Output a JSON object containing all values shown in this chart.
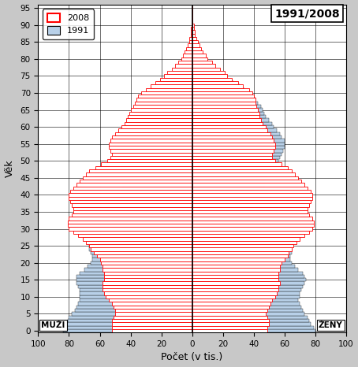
{
  "title": "1991/2008",
  "xlabel": "Počet (v tis.)",
  "ylabel": "Věk",
  "label_2008": "2008",
  "label_1991": "1991",
  "label_muzi": "MUŽI",
  "label_zeny": "ŽENY",
  "color_2008_fill": "#ffffff",
  "color_2008_edge": "#ff0000",
  "color_1991_fill": "#b8d0e8",
  "color_1991_edge": "#000000",
  "bg_color": "#c8c8c8",
  "xlim": 100,
  "ylim_max": 96,
  "ages": [
    0,
    1,
    2,
    3,
    4,
    5,
    6,
    7,
    8,
    9,
    10,
    11,
    12,
    13,
    14,
    15,
    16,
    17,
    18,
    19,
    20,
    21,
    22,
    23,
    24,
    25,
    26,
    27,
    28,
    29,
    30,
    31,
    32,
    33,
    34,
    35,
    36,
    37,
    38,
    39,
    40,
    41,
    42,
    43,
    44,
    45,
    46,
    47,
    48,
    49,
    50,
    51,
    52,
    53,
    54,
    55,
    56,
    57,
    58,
    59,
    60,
    61,
    62,
    63,
    64,
    65,
    66,
    67,
    68,
    69,
    70,
    71,
    72,
    73,
    74,
    75,
    76,
    77,
    78,
    79,
    80,
    81,
    82,
    83,
    84,
    85,
    86,
    87,
    88,
    89,
    90,
    91,
    92,
    93,
    94,
    95
  ],
  "males_2008": [
    52,
    52,
    52,
    52,
    51,
    50,
    50,
    51,
    52,
    54,
    56,
    57,
    58,
    58,
    58,
    57,
    57,
    57,
    58,
    58,
    59,
    60,
    62,
    64,
    66,
    67,
    69,
    71,
    74,
    77,
    80,
    81,
    81,
    80,
    78,
    77,
    77,
    78,
    79,
    80,
    80,
    79,
    77,
    75,
    73,
    71,
    69,
    67,
    63,
    59,
    55,
    53,
    52,
    53,
    54,
    54,
    53,
    52,
    50,
    48,
    46,
    44,
    43,
    42,
    41,
    40,
    38,
    37,
    36,
    35,
    33,
    30,
    27,
    24,
    21,
    18,
    16,
    13,
    11,
    9,
    7,
    6,
    5,
    4,
    3,
    2,
    2,
    1,
    1,
    1,
    0,
    0,
    0,
    0,
    0,
    0
  ],
  "females_2008": [
    49,
    49,
    50,
    50,
    49,
    48,
    49,
    50,
    51,
    52,
    54,
    55,
    56,
    56,
    57,
    56,
    56,
    56,
    57,
    57,
    58,
    60,
    62,
    63,
    65,
    66,
    68,
    70,
    73,
    76,
    78,
    79,
    79,
    78,
    76,
    75,
    75,
    76,
    77,
    78,
    78,
    77,
    75,
    73,
    71,
    69,
    67,
    65,
    62,
    58,
    54,
    52,
    52,
    53,
    54,
    54,
    53,
    52,
    51,
    49,
    48,
    46,
    45,
    44,
    44,
    43,
    42,
    41,
    41,
    40,
    39,
    37,
    33,
    30,
    26,
    23,
    21,
    18,
    15,
    13,
    10,
    9,
    7,
    6,
    5,
    4,
    3,
    2,
    2,
    1,
    1,
    0,
    0,
    0,
    0,
    0
  ],
  "males_1991": [
    84,
    83,
    82,
    81,
    80,
    78,
    76,
    75,
    74,
    73,
    73,
    73,
    73,
    74,
    75,
    75,
    75,
    73,
    70,
    68,
    66,
    65,
    65,
    66,
    67,
    67,
    43,
    42,
    43,
    44,
    45,
    47,
    50,
    52,
    54,
    56,
    56,
    54,
    52,
    50,
    48,
    46,
    45,
    45,
    44,
    62,
    63,
    63,
    46,
    46,
    47,
    47,
    47,
    48,
    48,
    48,
    47,
    46,
    45,
    43,
    41,
    40,
    38,
    36,
    34,
    33,
    32,
    30,
    27,
    25,
    23,
    21,
    18,
    16,
    14,
    11,
    9,
    8,
    6,
    5,
    4,
    3,
    2,
    2,
    1,
    1,
    0,
    0,
    0,
    0,
    0,
    0,
    0,
    0,
    0,
    0
  ],
  "females_1991": [
    80,
    79,
    77,
    76,
    75,
    73,
    72,
    71,
    70,
    69,
    70,
    70,
    71,
    72,
    73,
    74,
    73,
    72,
    69,
    67,
    65,
    64,
    64,
    65,
    65,
    66,
    42,
    41,
    42,
    43,
    45,
    47,
    49,
    51,
    53,
    55,
    55,
    54,
    53,
    51,
    49,
    48,
    47,
    47,
    47,
    48,
    49,
    51,
    53,
    55,
    56,
    57,
    58,
    59,
    60,
    60,
    60,
    58,
    57,
    55,
    53,
    52,
    50,
    48,
    47,
    46,
    45,
    43,
    41,
    39,
    37,
    34,
    31,
    27,
    23,
    20,
    18,
    15,
    12,
    10,
    8,
    6,
    5,
    4,
    3,
    2,
    2,
    1,
    1,
    0,
    0,
    0,
    0,
    0,
    0,
    0
  ]
}
